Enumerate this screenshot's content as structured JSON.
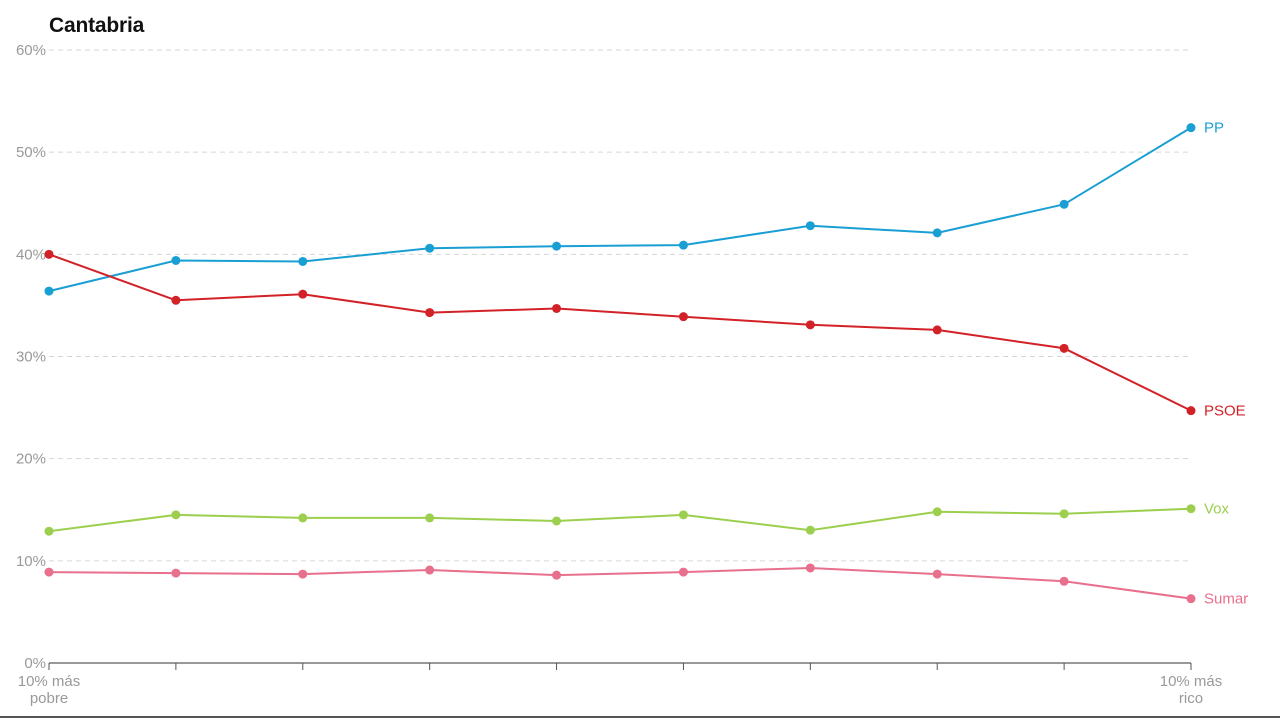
{
  "chart_data": {
    "type": "line",
    "title": "Cantabria",
    "xlabel": "",
    "ylabel": "",
    "x": [
      1,
      2,
      3,
      4,
      5,
      6,
      7,
      8,
      9,
      10
    ],
    "x_tick_labels": [
      {
        "index": 0,
        "lines": [
          "10% más",
          "pobre"
        ]
      },
      {
        "index": 9,
        "lines": [
          "10% más",
          "rico"
        ]
      }
    ],
    "ylim": [
      0,
      60
    ],
    "y_ticks": [
      0,
      10,
      20,
      30,
      40,
      50,
      60
    ],
    "y_tick_format": "%",
    "grid": true,
    "legend": "inline labels at line ends",
    "series": [
      {
        "name": "PP",
        "color": "#1a9fd4",
        "values": [
          36.4,
          39.4,
          39.3,
          40.6,
          40.8,
          40.9,
          42.8,
          42.1,
          44.9,
          52.4
        ]
      },
      {
        "name": "PSOE",
        "color": "#d32128",
        "values": [
          40.0,
          35.5,
          36.1,
          34.3,
          34.7,
          33.9,
          33.1,
          32.6,
          30.8,
          24.7
        ]
      },
      {
        "name": "Vox",
        "color": "#9ccf4e",
        "values": [
          12.9,
          14.5,
          14.2,
          14.2,
          13.9,
          14.5,
          13.0,
          14.8,
          14.6,
          15.1
        ]
      },
      {
        "name": "Sumar",
        "color": "#e8708d",
        "values": [
          8.9,
          8.8,
          8.7,
          9.1,
          8.6,
          8.9,
          9.3,
          8.7,
          8.0,
          6.3
        ]
      }
    ]
  }
}
